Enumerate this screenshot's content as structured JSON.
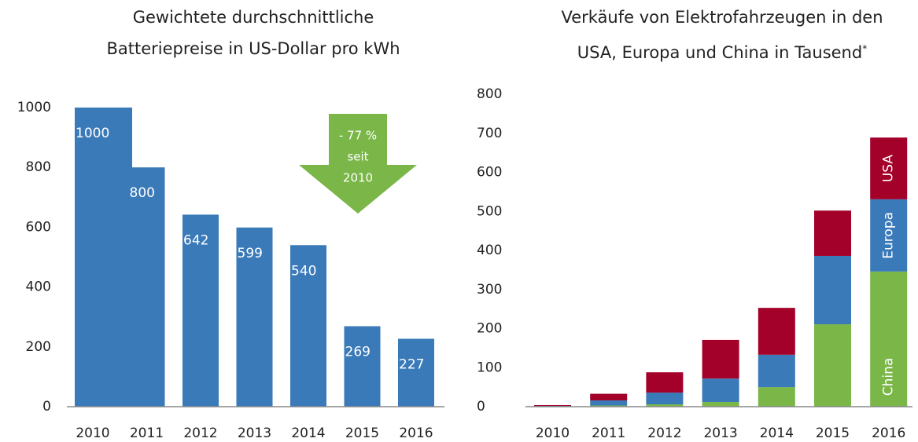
{
  "chart_data": [
    {
      "type": "bar",
      "title": "Gewichtete durchschnittliche Batteriepreise in US-Dollar pro kWh",
      "categories": [
        "2010",
        "2011",
        "2012",
        "2013",
        "2014",
        "2015",
        "2016"
      ],
      "values": [
        1000,
        800,
        642,
        599,
        540,
        269,
        227
      ],
      "color": "#3a7ab8",
      "ylim": [
        0,
        1000
      ],
      "yticks": [
        0,
        200,
        400,
        600,
        800,
        1000
      ],
      "annotation": [
        "- 77 %",
        "seit",
        "2010"
      ],
      "annotation_color": "#7ab648"
    },
    {
      "type": "stacked_bar",
      "title": "Verkäufe von Elektrofahrzeugen in den USA, Europa und China in Tausend",
      "title_note": "*",
      "categories": [
        "2010",
        "2011",
        "2012",
        "2013",
        "2014",
        "2015",
        "2016"
      ],
      "series": [
        {
          "name": "China",
          "color": "#7ab648",
          "values": [
            1,
            3,
            6,
            12,
            50,
            211,
            346
          ]
        },
        {
          "name": "Europa",
          "color": "#3a7ab8",
          "values": [
            1,
            13,
            30,
            60,
            83,
            175,
            185
          ]
        },
        {
          "name": "USA",
          "color": "#a3002a",
          "values": [
            2,
            17,
            52,
            99,
            120,
            116,
            158
          ]
        }
      ],
      "ylim": [
        0,
        800
      ],
      "yticks": [
        0,
        100,
        200,
        300,
        400,
        500,
        600,
        700,
        800
      ]
    }
  ]
}
